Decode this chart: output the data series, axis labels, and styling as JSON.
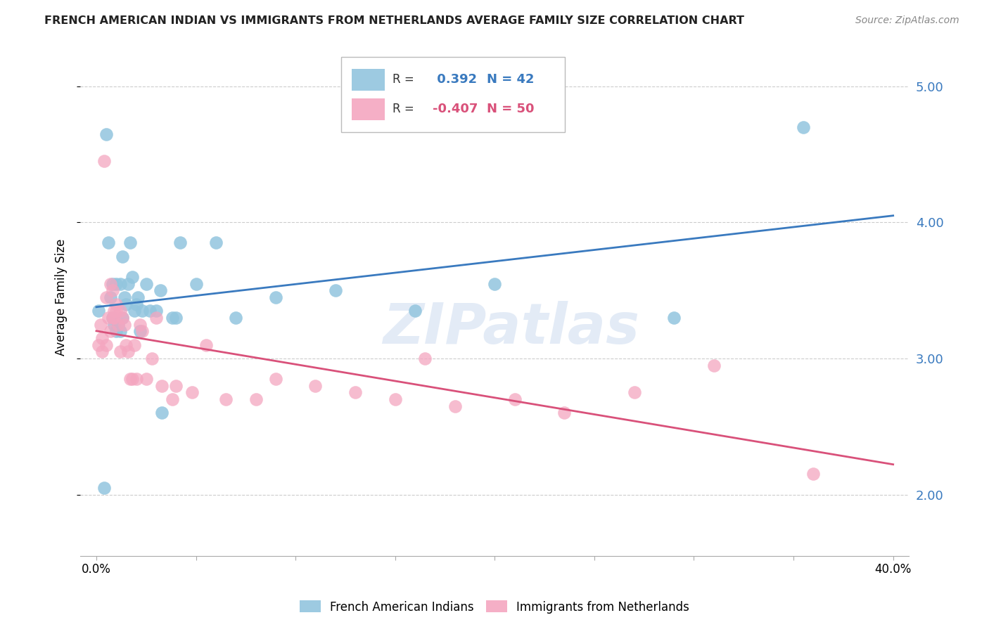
{
  "title": "FRENCH AMERICAN INDIAN VS IMMIGRANTS FROM NETHERLANDS AVERAGE FAMILY SIZE CORRELATION CHART",
  "source": "Source: ZipAtlas.com",
  "ylabel": "Average Family Size",
  "yticks": [
    2.0,
    3.0,
    4.0,
    5.0
  ],
  "xlim": [
    -0.008,
    0.408
  ],
  "ylim": [
    1.55,
    5.35
  ],
  "series1_label": "French American Indians",
  "series2_label": "Immigrants from Netherlands",
  "R1": 0.392,
  "N1": 42,
  "R2": -0.407,
  "N2": 50,
  "color1": "#92c5de",
  "color2": "#f4a6c0",
  "line_color1": "#3a7abf",
  "line_color2": "#d9517a",
  "watermark": "ZIPatlas",
  "blue_x": [
    0.001,
    0.004,
    0.005,
    0.006,
    0.007,
    0.008,
    0.008,
    0.009,
    0.01,
    0.01,
    0.011,
    0.012,
    0.012,
    0.013,
    0.013,
    0.014,
    0.015,
    0.016,
    0.017,
    0.018,
    0.019,
    0.02,
    0.021,
    0.022,
    0.023,
    0.025,
    0.027,
    0.03,
    0.032,
    0.033,
    0.038,
    0.04,
    0.042,
    0.05,
    0.06,
    0.07,
    0.09,
    0.12,
    0.16,
    0.2,
    0.29,
    0.355
  ],
  "blue_y": [
    3.35,
    2.05,
    4.65,
    3.85,
    3.45,
    3.3,
    3.55,
    3.25,
    3.55,
    3.2,
    3.25,
    3.2,
    3.55,
    3.3,
    3.75,
    3.45,
    3.4,
    3.55,
    3.85,
    3.6,
    3.35,
    3.4,
    3.45,
    3.2,
    3.35,
    3.55,
    3.35,
    3.35,
    3.5,
    2.6,
    3.3,
    3.3,
    3.85,
    3.55,
    3.85,
    3.3,
    3.45,
    3.5,
    3.35,
    3.55,
    3.3,
    4.7
  ],
  "pink_x": [
    0.001,
    0.002,
    0.003,
    0.003,
    0.004,
    0.005,
    0.005,
    0.006,
    0.007,
    0.007,
    0.008,
    0.008,
    0.009,
    0.009,
    0.01,
    0.01,
    0.011,
    0.012,
    0.012,
    0.013,
    0.014,
    0.015,
    0.016,
    0.017,
    0.018,
    0.019,
    0.02,
    0.022,
    0.023,
    0.025,
    0.028,
    0.03,
    0.033,
    0.038,
    0.04,
    0.048,
    0.055,
    0.065,
    0.08,
    0.09,
    0.11,
    0.13,
    0.15,
    0.165,
    0.18,
    0.21,
    0.235,
    0.27,
    0.31,
    0.36
  ],
  "pink_y": [
    3.1,
    3.25,
    3.05,
    3.15,
    4.45,
    3.45,
    3.1,
    3.3,
    3.2,
    3.55,
    3.5,
    3.3,
    3.35,
    3.3,
    3.4,
    3.35,
    3.25,
    3.35,
    3.05,
    3.3,
    3.25,
    3.1,
    3.05,
    2.85,
    2.85,
    3.1,
    2.85,
    3.25,
    3.2,
    2.85,
    3.0,
    3.3,
    2.8,
    2.7,
    2.8,
    2.75,
    3.1,
    2.7,
    2.7,
    2.85,
    2.8,
    2.75,
    2.7,
    3.0,
    2.65,
    2.7,
    2.6,
    2.75,
    2.95,
    2.15
  ],
  "xtick_positions": [
    0.0,
    0.05,
    0.1,
    0.15,
    0.2,
    0.25,
    0.3,
    0.35,
    0.4
  ],
  "grid_color": "#cccccc",
  "spine_color": "#aaaaaa"
}
